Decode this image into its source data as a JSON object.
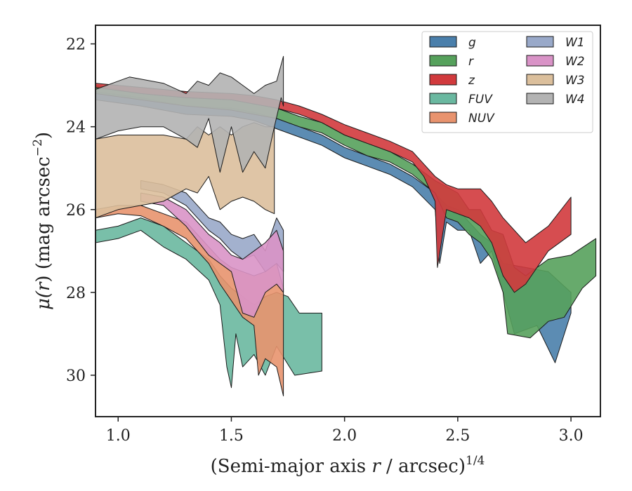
{
  "chart_data": {
    "type": "area",
    "xlabel_main": "(Semi-major axis ",
    "xlabel_var": "r",
    "xlabel_unit": " / arcsec)",
    "xlabel_exp": "1/4",
    "ylabel_main": "μ(",
    "ylabel_var": "r",
    "ylabel_unit": ") (mag arcsec",
    "ylabel_exp": "−2",
    "ylabel_end": ")",
    "xlim": [
      0.9,
      3.13
    ],
    "ylim": [
      31.0,
      21.55
    ],
    "y_inverted": true,
    "x_ticks": [
      1.0,
      1.5,
      2.0,
      2.5,
      3.0
    ],
    "x_tick_labels": [
      "1.0",
      "1.5",
      "2.0",
      "2.5",
      "3.0"
    ],
    "y_ticks": [
      22,
      24,
      26,
      28,
      30
    ],
    "y_tick_labels": [
      "22",
      "24",
      "26",
      "28",
      "30"
    ],
    "grid": false,
    "legend_position": "top-right",
    "legend_columns": 2,
    "series": [
      {
        "name": "g",
        "color": "#4a7fab",
        "upper": [
          [
            0.9,
            23.15
          ],
          [
            1.1,
            23.3
          ],
          [
            1.3,
            23.5
          ],
          [
            1.5,
            23.55
          ],
          [
            1.6,
            23.65
          ],
          [
            1.7,
            23.8
          ],
          [
            1.8,
            24.0
          ],
          [
            1.9,
            24.2
          ],
          [
            2.0,
            24.5
          ],
          [
            2.1,
            24.7
          ],
          [
            2.2,
            24.9
          ],
          [
            2.3,
            25.2
          ],
          [
            2.4,
            25.6
          ],
          [
            2.45,
            25.9
          ],
          [
            2.5,
            26.0
          ],
          [
            2.55,
            26.3
          ],
          [
            2.6,
            26.6
          ],
          [
            2.65,
            26.8
          ],
          [
            2.7,
            27.3
          ],
          [
            2.8,
            27.4
          ],
          [
            2.9,
            27.5
          ],
          [
            3.0,
            28.0
          ]
        ],
        "lower": [
          [
            0.9,
            23.35
          ],
          [
            1.1,
            23.5
          ],
          [
            1.3,
            23.7
          ],
          [
            1.5,
            23.75
          ],
          [
            1.6,
            23.85
          ],
          [
            1.7,
            24.05
          ],
          [
            1.8,
            24.25
          ],
          [
            1.9,
            24.45
          ],
          [
            2.0,
            24.75
          ],
          [
            2.1,
            24.95
          ],
          [
            2.2,
            25.15
          ],
          [
            2.3,
            25.45
          ],
          [
            2.4,
            26.0
          ],
          [
            2.42,
            27.3
          ],
          [
            2.45,
            26.3
          ],
          [
            2.5,
            26.5
          ],
          [
            2.55,
            26.5
          ],
          [
            2.6,
            27.3
          ],
          [
            2.65,
            27.0
          ],
          [
            2.7,
            28.0
          ],
          [
            2.75,
            29.0
          ],
          [
            2.85,
            28.8
          ],
          [
            2.93,
            29.7
          ],
          [
            3.0,
            28.5
          ]
        ]
      },
      {
        "name": "r",
        "color": "#56a15c",
        "upper": [
          [
            0.9,
            23.0
          ],
          [
            1.1,
            23.2
          ],
          [
            1.3,
            23.3
          ],
          [
            1.5,
            23.35
          ],
          [
            1.6,
            23.45
          ],
          [
            1.7,
            23.55
          ],
          [
            1.8,
            23.75
          ],
          [
            1.9,
            23.9
          ],
          [
            2.0,
            24.2
          ],
          [
            2.1,
            24.4
          ],
          [
            2.2,
            24.6
          ],
          [
            2.3,
            24.9
          ],
          [
            2.4,
            25.3
          ],
          [
            2.5,
            25.6
          ],
          [
            2.55,
            26.0
          ],
          [
            2.6,
            26.0
          ],
          [
            2.65,
            26.5
          ],
          [
            2.7,
            26.6
          ],
          [
            2.75,
            27.4
          ],
          [
            2.8,
            27.6
          ],
          [
            2.9,
            27.2
          ],
          [
            3.0,
            27.1
          ],
          [
            3.11,
            26.7
          ]
        ],
        "lower": [
          [
            0.9,
            23.2
          ],
          [
            1.1,
            23.35
          ],
          [
            1.3,
            23.5
          ],
          [
            1.5,
            23.6
          ],
          [
            1.6,
            23.7
          ],
          [
            1.7,
            23.8
          ],
          [
            1.8,
            24.0
          ],
          [
            1.9,
            24.15
          ],
          [
            2.0,
            24.45
          ],
          [
            2.1,
            24.7
          ],
          [
            2.2,
            24.85
          ],
          [
            2.3,
            25.15
          ],
          [
            2.4,
            25.6
          ],
          [
            2.45,
            26.2
          ],
          [
            2.5,
            26.3
          ],
          [
            2.55,
            26.6
          ],
          [
            2.6,
            26.8
          ],
          [
            2.65,
            27.2
          ],
          [
            2.7,
            28.0
          ],
          [
            2.72,
            29.0
          ],
          [
            2.82,
            29.1
          ],
          [
            2.9,
            28.7
          ],
          [
            2.97,
            28.6
          ],
          [
            3.05,
            27.9
          ],
          [
            3.11,
            27.6
          ]
        ]
      },
      {
        "name": "z",
        "color": "#d13a3d",
        "upper": [
          [
            0.9,
            22.95
          ],
          [
            1.1,
            23.05
          ],
          [
            1.3,
            23.15
          ],
          [
            1.5,
            23.2
          ],
          [
            1.6,
            23.25
          ],
          [
            1.7,
            23.35
          ],
          [
            1.8,
            23.5
          ],
          [
            1.9,
            23.7
          ],
          [
            2.0,
            23.95
          ],
          [
            2.1,
            24.15
          ],
          [
            2.2,
            24.35
          ],
          [
            2.3,
            24.6
          ],
          [
            2.35,
            24.9
          ],
          [
            2.4,
            25.2
          ],
          [
            2.45,
            25.4
          ],
          [
            2.5,
            25.5
          ],
          [
            2.55,
            25.5
          ],
          [
            2.6,
            25.5
          ],
          [
            2.65,
            25.8
          ],
          [
            2.7,
            26.2
          ],
          [
            2.8,
            26.8
          ],
          [
            2.9,
            26.4
          ],
          [
            3.0,
            25.7
          ]
        ],
        "lower": [
          [
            0.9,
            23.05
          ],
          [
            1.1,
            23.2
          ],
          [
            1.3,
            23.3
          ],
          [
            1.5,
            23.35
          ],
          [
            1.6,
            23.45
          ],
          [
            1.7,
            23.55
          ],
          [
            1.8,
            23.7
          ],
          [
            1.9,
            23.9
          ],
          [
            2.0,
            24.2
          ],
          [
            2.1,
            24.4
          ],
          [
            2.2,
            24.6
          ],
          [
            2.3,
            24.85
          ],
          [
            2.35,
            25.2
          ],
          [
            2.4,
            25.8
          ],
          [
            2.41,
            27.4
          ],
          [
            2.45,
            26.0
          ],
          [
            2.55,
            26.2
          ],
          [
            2.6,
            26.4
          ],
          [
            2.65,
            26.8
          ],
          [
            2.7,
            27.6
          ],
          [
            2.75,
            28.0
          ],
          [
            2.8,
            27.8
          ],
          [
            2.9,
            27.0
          ],
          [
            3.0,
            26.6
          ]
        ]
      },
      {
        "name": "FUV",
        "color": "#6ab8a0",
        "upper": [
          [
            0.9,
            26.5
          ],
          [
            1.0,
            26.4
          ],
          [
            1.1,
            26.2
          ],
          [
            1.2,
            26.4
          ],
          [
            1.3,
            26.8
          ],
          [
            1.4,
            27.2
          ],
          [
            1.45,
            27.6
          ],
          [
            1.5,
            27.9
          ],
          [
            1.55,
            28.1
          ],
          [
            1.6,
            28.3
          ],
          [
            1.65,
            28.1
          ],
          [
            1.7,
            28.0
          ],
          [
            1.75,
            28.1
          ],
          [
            1.8,
            28.5
          ],
          [
            1.9,
            28.5
          ]
        ],
        "lower": [
          [
            0.9,
            26.8
          ],
          [
            1.0,
            26.7
          ],
          [
            1.1,
            26.5
          ],
          [
            1.2,
            26.9
          ],
          [
            1.3,
            27.2
          ],
          [
            1.4,
            27.7
          ],
          [
            1.45,
            28.3
          ],
          [
            1.48,
            29.8
          ],
          [
            1.5,
            30.3
          ],
          [
            1.52,
            29.0
          ],
          [
            1.55,
            29.8
          ],
          [
            1.6,
            29.5
          ],
          [
            1.65,
            30.0
          ],
          [
            1.7,
            29.3
          ],
          [
            1.78,
            30.0
          ],
          [
            1.9,
            29.9
          ]
        ]
      },
      {
        "name": "NUV",
        "color": "#e8936e",
        "upper": [
          [
            0.9,
            26.0
          ],
          [
            1.0,
            25.9
          ],
          [
            1.1,
            25.9
          ],
          [
            1.2,
            26.1
          ],
          [
            1.3,
            26.3
          ],
          [
            1.4,
            26.9
          ],
          [
            1.45,
            27.2
          ],
          [
            1.5,
            27.4
          ],
          [
            1.55,
            27.5
          ],
          [
            1.6,
            27.6
          ],
          [
            1.65,
            27.5
          ],
          [
            1.7,
            27.3
          ],
          [
            1.73,
            27.9
          ]
        ],
        "lower": [
          [
            0.9,
            26.2
          ],
          [
            1.0,
            26.1
          ],
          [
            1.1,
            26.15
          ],
          [
            1.2,
            26.4
          ],
          [
            1.3,
            26.7
          ],
          [
            1.4,
            27.3
          ],
          [
            1.45,
            27.8
          ],
          [
            1.5,
            28.2
          ],
          [
            1.55,
            28.6
          ],
          [
            1.6,
            28.8
          ],
          [
            1.62,
            30.0
          ],
          [
            1.65,
            29.6
          ],
          [
            1.7,
            29.8
          ],
          [
            1.73,
            30.5
          ]
        ]
      },
      {
        "name": "W1",
        "color": "#99a9c9",
        "upper": [
          [
            1.1,
            25.3
          ],
          [
            1.2,
            25.4
          ],
          [
            1.3,
            25.6
          ],
          [
            1.4,
            26.2
          ],
          [
            1.45,
            26.3
          ],
          [
            1.5,
            26.6
          ],
          [
            1.55,
            26.7
          ],
          [
            1.6,
            26.6
          ],
          [
            1.65,
            27.0
          ],
          [
            1.7,
            26.2
          ],
          [
            1.73,
            26.5
          ]
        ],
        "lower": [
          [
            1.1,
            25.5
          ],
          [
            1.2,
            25.6
          ],
          [
            1.3,
            25.9
          ],
          [
            1.4,
            26.5
          ],
          [
            1.45,
            26.7
          ],
          [
            1.5,
            27.0
          ],
          [
            1.55,
            27.2
          ],
          [
            1.6,
            27.1
          ],
          [
            1.65,
            27.5
          ],
          [
            1.7,
            27.3
          ],
          [
            1.73,
            27.5
          ]
        ]
      },
      {
        "name": "W2",
        "color": "#d993c7",
        "upper": [
          [
            1.1,
            25.6
          ],
          [
            1.2,
            25.7
          ],
          [
            1.3,
            26.0
          ],
          [
            1.4,
            26.6
          ],
          [
            1.45,
            26.8
          ],
          [
            1.5,
            27.1
          ],
          [
            1.55,
            27.2
          ],
          [
            1.6,
            27.0
          ],
          [
            1.65,
            26.8
          ],
          [
            1.7,
            26.5
          ],
          [
            1.73,
            27.0
          ]
        ],
        "lower": [
          [
            1.1,
            25.8
          ],
          [
            1.2,
            25.9
          ],
          [
            1.3,
            26.4
          ],
          [
            1.4,
            27.1
          ],
          [
            1.45,
            27.3
          ],
          [
            1.5,
            27.5
          ],
          [
            1.55,
            28.5
          ],
          [
            1.6,
            28.6
          ],
          [
            1.65,
            28.0
          ],
          [
            1.7,
            27.8
          ],
          [
            1.73,
            28.0
          ]
        ]
      },
      {
        "name": "W3",
        "color": "#dbbf9c",
        "upper": [
          [
            0.9,
            24.3
          ],
          [
            1.0,
            24.2
          ],
          [
            1.1,
            24.2
          ],
          [
            1.2,
            24.2
          ],
          [
            1.3,
            24.3
          ],
          [
            1.35,
            24.0
          ],
          [
            1.4,
            24.2
          ],
          [
            1.45,
            24.0
          ],
          [
            1.5,
            24.2
          ],
          [
            1.55,
            24.0
          ],
          [
            1.6,
            23.9
          ],
          [
            1.65,
            24.0
          ],
          [
            1.69,
            24.0
          ]
        ],
        "lower": [
          [
            0.9,
            26.2
          ],
          [
            1.0,
            26.0
          ],
          [
            1.1,
            25.9
          ],
          [
            1.2,
            25.8
          ],
          [
            1.3,
            25.5
          ],
          [
            1.35,
            25.6
          ],
          [
            1.4,
            25.2
          ],
          [
            1.45,
            26.0
          ],
          [
            1.5,
            25.8
          ],
          [
            1.55,
            25.7
          ],
          [
            1.6,
            25.8
          ],
          [
            1.65,
            26.0
          ],
          [
            1.69,
            26.1
          ]
        ]
      },
      {
        "name": "W4",
        "color": "#b3b3b3",
        "upper": [
          [
            0.9,
            23.1
          ],
          [
            0.95,
            23.0
          ],
          [
            1.0,
            22.9
          ],
          [
            1.05,
            22.8
          ],
          [
            1.2,
            22.95
          ],
          [
            1.3,
            23.2
          ],
          [
            1.35,
            22.9
          ],
          [
            1.4,
            23.0
          ],
          [
            1.45,
            22.7
          ],
          [
            1.5,
            22.8
          ],
          [
            1.55,
            23.0
          ],
          [
            1.6,
            23.2
          ],
          [
            1.65,
            23.0
          ],
          [
            1.7,
            22.9
          ],
          [
            1.73,
            22.3
          ]
        ],
        "lower": [
          [
            0.9,
            24.3
          ],
          [
            1.0,
            24.1
          ],
          [
            1.1,
            24.0
          ],
          [
            1.2,
            24.0
          ],
          [
            1.3,
            24.3
          ],
          [
            1.35,
            24.5
          ],
          [
            1.4,
            23.8
          ],
          [
            1.45,
            25.1
          ],
          [
            1.5,
            24.0
          ],
          [
            1.55,
            25.1
          ],
          [
            1.6,
            24.6
          ],
          [
            1.65,
            25.0
          ],
          [
            1.69,
            24.0
          ],
          [
            1.72,
            23.3
          ],
          [
            1.73,
            23.5
          ]
        ]
      }
    ]
  }
}
